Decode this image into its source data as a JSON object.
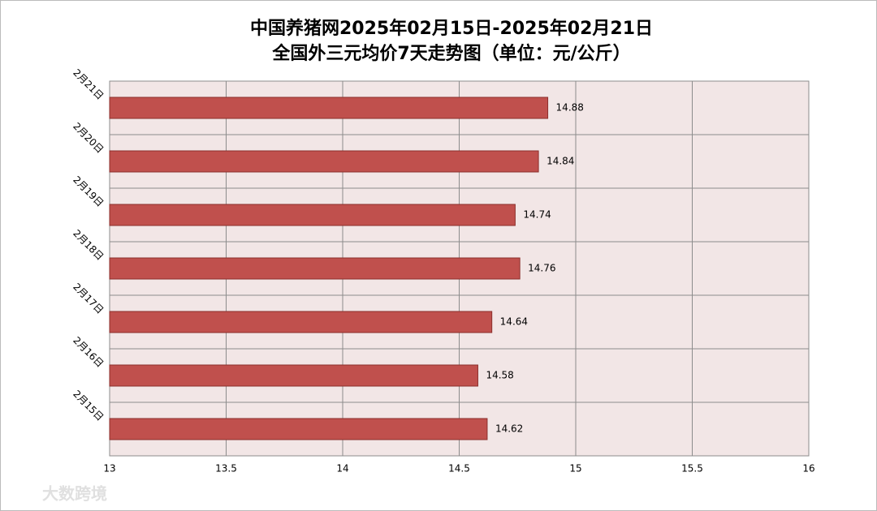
{
  "chart_data": {
    "type": "bar",
    "orientation": "horizontal",
    "title": "中国养猪网2025年02月15日-2025年02月21日",
    "subtitle": "全国外三元均价7天走势图（单位：元/公斤）",
    "categories": [
      "2月21日",
      "2月20日",
      "2月19日",
      "2月18日",
      "2月17日",
      "2月16日",
      "2月15日"
    ],
    "values": [
      14.88,
      14.84,
      14.74,
      14.76,
      14.64,
      14.58,
      14.62
    ],
    "color": "#c0504d",
    "xlim": [
      13,
      16
    ],
    "xticks": [
      13,
      13.5,
      14,
      14.5,
      15,
      15.5,
      16
    ],
    "grid": true,
    "watermark": "大数跨境"
  }
}
